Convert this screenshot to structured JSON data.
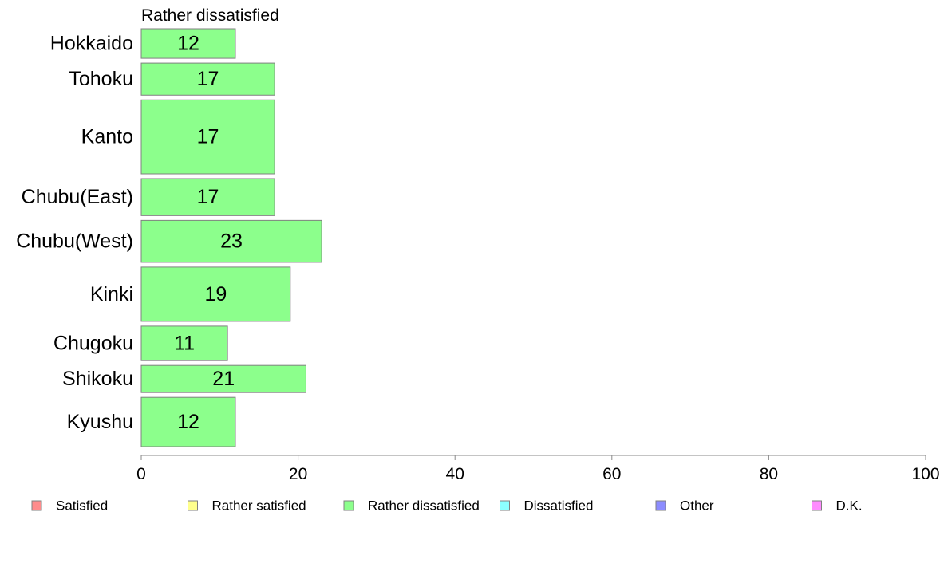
{
  "chart_data": {
    "type": "bar",
    "orientation": "horizontal",
    "title": "Rather dissatisfied",
    "categories": [
      "Hokkaido",
      "Tohoku",
      "Kanto",
      "Chubu(East)",
      "Chubu(West)",
      "Kinki",
      "Chugoku",
      "Shikoku",
      "Kyushu"
    ],
    "series": [
      {
        "name": "Rather dissatisfied",
        "color": "#8cff8c",
        "values": [
          12,
          17,
          17,
          17,
          23,
          19,
          11,
          21,
          12
        ],
        "labels": [
          "12",
          "17",
          "17",
          "17",
          "23",
          "19",
          "11",
          "21",
          "12"
        ]
      }
    ],
    "relative_sample_sizes": [
      0.6,
      0.65,
      1.5,
      0.75,
      0.85,
      1.1,
      0.7,
      0.55,
      1.0
    ],
    "xlim": [
      0,
      100
    ],
    "xticks": [
      "0",
      "20",
      "40",
      "60",
      "80",
      "100"
    ],
    "xlabel": "",
    "ylabel": "",
    "grid": false,
    "legend_position": "bottom",
    "legend": [
      {
        "label": "Satisfied",
        "color": "#ff8c8c"
      },
      {
        "label": "Rather satisfied",
        "color": "#ffff8c"
      },
      {
        "label": "Rather dissatisfied",
        "color": "#8cff8c"
      },
      {
        "label": "Dissatisfied",
        "color": "#8cffff"
      },
      {
        "label": "Other",
        "color": "#8c8cff"
      },
      {
        "label": "D.K.",
        "color": "#ff8cff"
      }
    ]
  }
}
